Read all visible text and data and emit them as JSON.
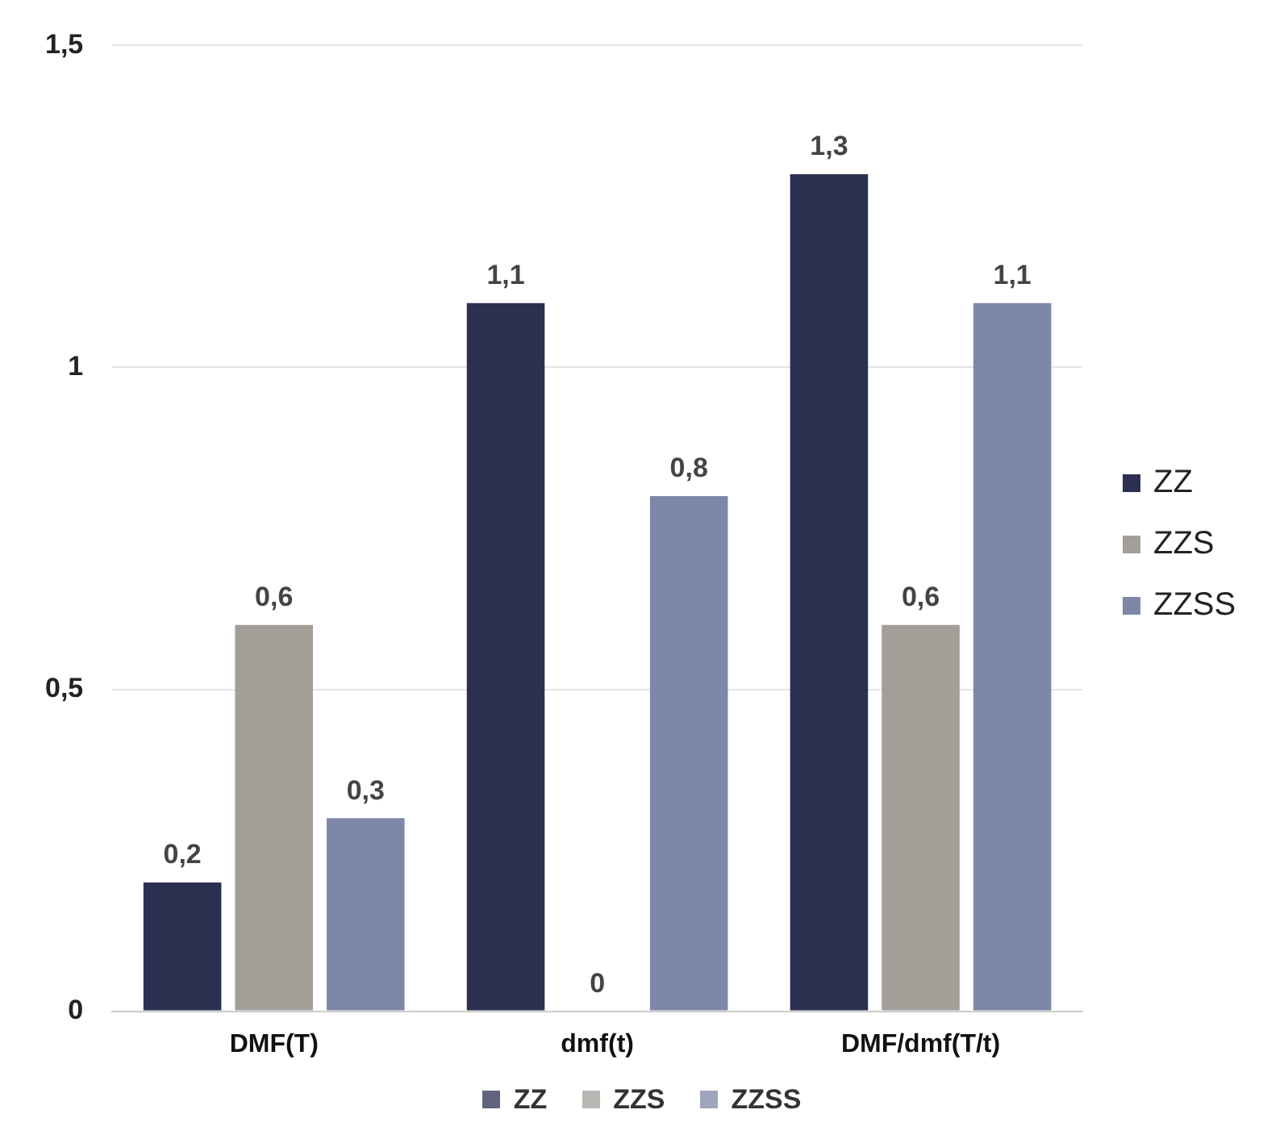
{
  "chart_data": {
    "type": "bar",
    "categories": [
      "DMF(T)",
      "dmf(t)",
      "DMF/dmf(T/t)"
    ],
    "series": [
      {
        "name": "ZZ",
        "color": "#2b3050",
        "values": [
          0.2,
          1.1,
          1.3
        ],
        "value_labels": [
          "0,2",
          "1,1",
          "1,3"
        ]
      },
      {
        "name": "ZZS",
        "color": "#a39e98",
        "values": [
          0.6,
          0,
          0.6
        ],
        "value_labels": [
          "0,6",
          "0",
          "0,6"
        ]
      },
      {
        "name": "ZZSS",
        "color": "#7d88a8",
        "values": [
          0.3,
          0.8,
          1.1
        ],
        "value_labels": [
          "0,3",
          "0,8",
          "1,1"
        ]
      }
    ],
    "ylim": [
      0,
      1.5
    ],
    "yticks": [
      0,
      {
        "value": 0.5,
        "label": "0,5"
      },
      1,
      {
        "value": 1.5,
        "label": "1,5"
      }
    ],
    "grid": "y",
    "legend": "right"
  }
}
